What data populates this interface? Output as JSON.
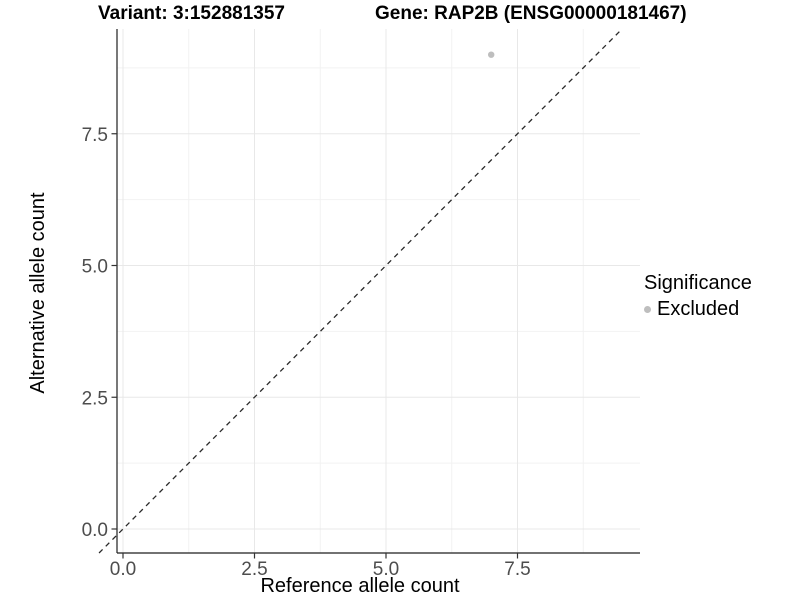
{
  "header": {
    "variant_title": "Variant: 3:152881357",
    "gene_title": "Gene: RAP2B (ENSG00000181467)"
  },
  "chart_data": {
    "type": "scatter",
    "xlabel": "Reference allele count",
    "ylabel": "Alternative allele count",
    "xlim": [
      -0.45,
      9.83
    ],
    "ylim": [
      -0.46,
      9.49
    ],
    "x_ticks": {
      "values": [
        0,
        2.5,
        5,
        7.5
      ],
      "labels": [
        "0.0",
        "2.5",
        "5.0",
        "7.5"
      ]
    },
    "y_ticks": {
      "values": [
        0,
        2.5,
        5,
        7.5
      ],
      "labels": [
        "0.0",
        "2.5",
        "5.0",
        "7.5"
      ]
    },
    "x_minor": [
      1.25,
      3.75,
      6.25,
      8.75
    ],
    "y_minor": [
      1.25,
      3.75,
      6.25,
      8.75
    ],
    "grid": "major-and-minor",
    "points": [
      {
        "x": 7,
        "y": 9,
        "significance": "Excluded"
      }
    ],
    "abline": {
      "slope": 1,
      "intercept": 0,
      "style": "dashed"
    },
    "legend": {
      "position": "right",
      "title": "Significance",
      "items": [
        {
          "label": "Excluded",
          "color": "#bebebe"
        }
      ]
    },
    "colors": {
      "point": "#bebebe",
      "dashed_line": "#2a2a2a",
      "axis_line": "#1f1f1f",
      "tick_mark": "#333333",
      "tick_label": "#4d4d4d",
      "grid_major": "#e8e8e8",
      "grid_minor": "#f2f2f2",
      "background": "#ffffff"
    }
  }
}
